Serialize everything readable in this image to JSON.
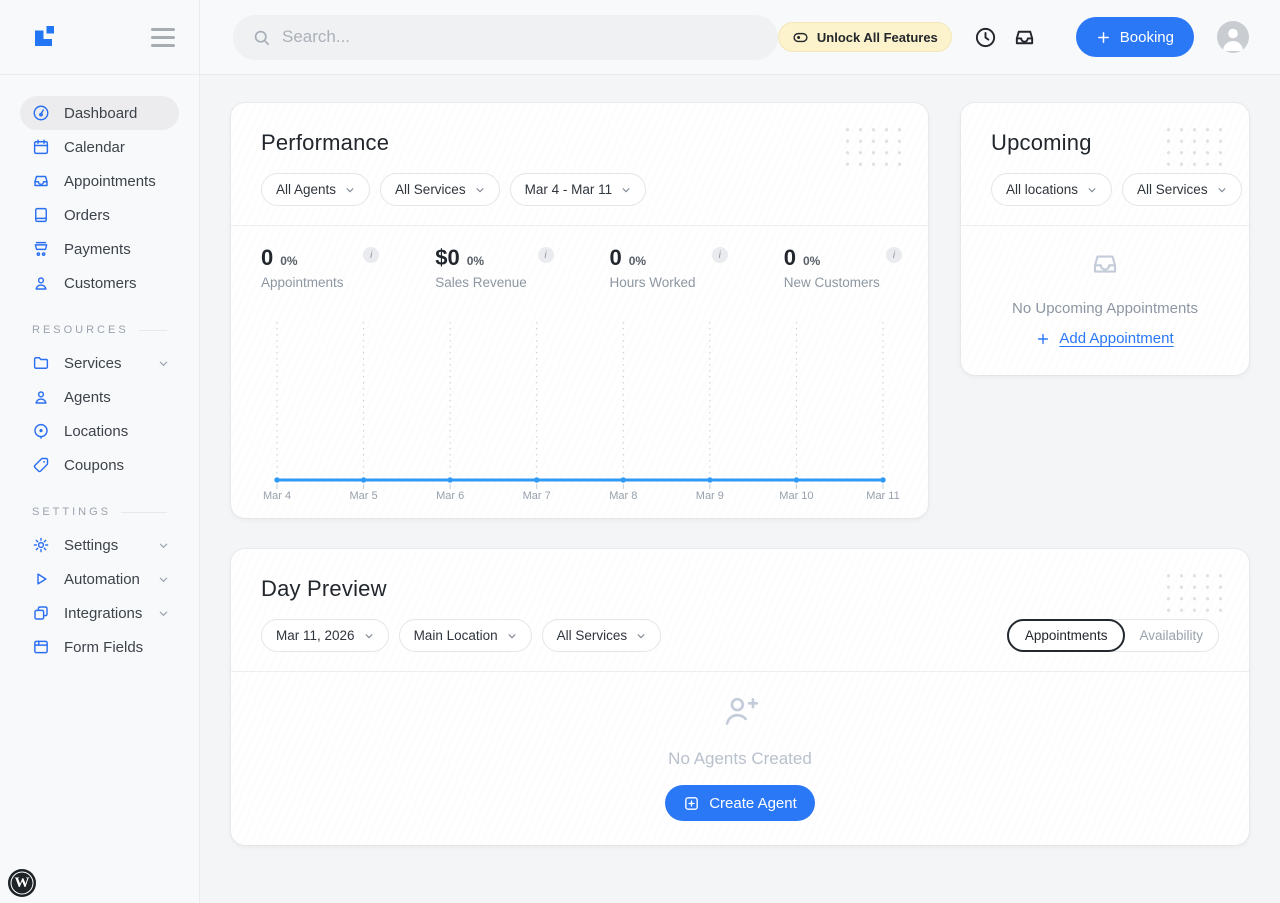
{
  "colors": {
    "accent": "#2b78f6",
    "chart_line": "#2f9bf5",
    "sidebar_icon": "#2b6ff2",
    "unlock_bg": "#fcf3cd"
  },
  "topbar": {
    "search_placeholder": "Search...",
    "unlock_label": "Unlock All Features",
    "booking_label": "Booking",
    "icons": [
      "toggle-icon",
      "clock-icon",
      "inbox-tray-icon"
    ]
  },
  "sidebar": {
    "main_items": [
      {
        "label": "Dashboard",
        "icon": "gauge-icon",
        "active": true
      },
      {
        "label": "Calendar",
        "icon": "calendar-icon",
        "active": false
      },
      {
        "label": "Appointments",
        "icon": "inbox-tray-icon",
        "active": false
      },
      {
        "label": "Orders",
        "icon": "book-icon",
        "active": false
      },
      {
        "label": "Payments",
        "icon": "cart-icon",
        "active": false
      },
      {
        "label": "Customers",
        "icon": "user-icon",
        "active": false
      }
    ],
    "resources_label": "RESOURCES",
    "resources_items": [
      {
        "label": "Services",
        "icon": "folder-icon",
        "chevron": true
      },
      {
        "label": "Agents",
        "icon": "user-icon",
        "chevron": false
      },
      {
        "label": "Locations",
        "icon": "geo-target-icon",
        "chevron": false
      },
      {
        "label": "Coupons",
        "icon": "tag-icon",
        "chevron": false
      }
    ],
    "settings_label": "SETTINGS",
    "settings_items": [
      {
        "label": "Settings",
        "icon": "gear-icon",
        "chevron": true
      },
      {
        "label": "Automation",
        "icon": "play-icon",
        "chevron": true
      },
      {
        "label": "Integrations",
        "icon": "copy-icon",
        "chevron": true
      },
      {
        "label": "Form Fields",
        "icon": "form-icon",
        "chevron": false
      }
    ],
    "wp_label": "W"
  },
  "performance": {
    "title": "Performance",
    "filter_agents": "All Agents",
    "filter_services": "All Services",
    "filter_range": "Mar 4 - Mar 11",
    "info_badge": "i",
    "stats": [
      {
        "value": "0",
        "percent": "0%",
        "label": "Appointments"
      },
      {
        "value": "$0",
        "percent": "0%",
        "label": "Sales Revenue"
      },
      {
        "value": "0",
        "percent": "0%",
        "label": "Hours Worked"
      },
      {
        "value": "0",
        "percent": "0%",
        "label": "New Customers"
      }
    ]
  },
  "chart_data": {
    "type": "line",
    "x": [
      "Mar 4",
      "Mar 5",
      "Mar 6",
      "Mar 7",
      "Mar 8",
      "Mar 9",
      "Mar 10",
      "Mar 11"
    ],
    "series": [
      {
        "name": "Appointments",
        "values": [
          0,
          0,
          0,
          0,
          0,
          0,
          0,
          0
        ]
      }
    ],
    "ylim": [
      0,
      1
    ],
    "grid": "vertical-dashed",
    "legend": "none",
    "title": "",
    "xlabel": "",
    "ylabel": ""
  },
  "upcoming": {
    "title": "Upcoming",
    "filter_locations": "All locations",
    "filter_services": "All Services",
    "empty_text": "No Upcoming Appointments",
    "add_label": "Add Appointment"
  },
  "day_preview": {
    "title": "Day Preview",
    "filter_date": "Mar 11, 2026",
    "filter_location": "Main Location",
    "filter_services": "All Services",
    "tabs": [
      {
        "label": "Appointments",
        "active": true
      },
      {
        "label": "Availability",
        "active": false
      }
    ],
    "empty_text": "No Agents Created",
    "create_label": "Create Agent"
  }
}
